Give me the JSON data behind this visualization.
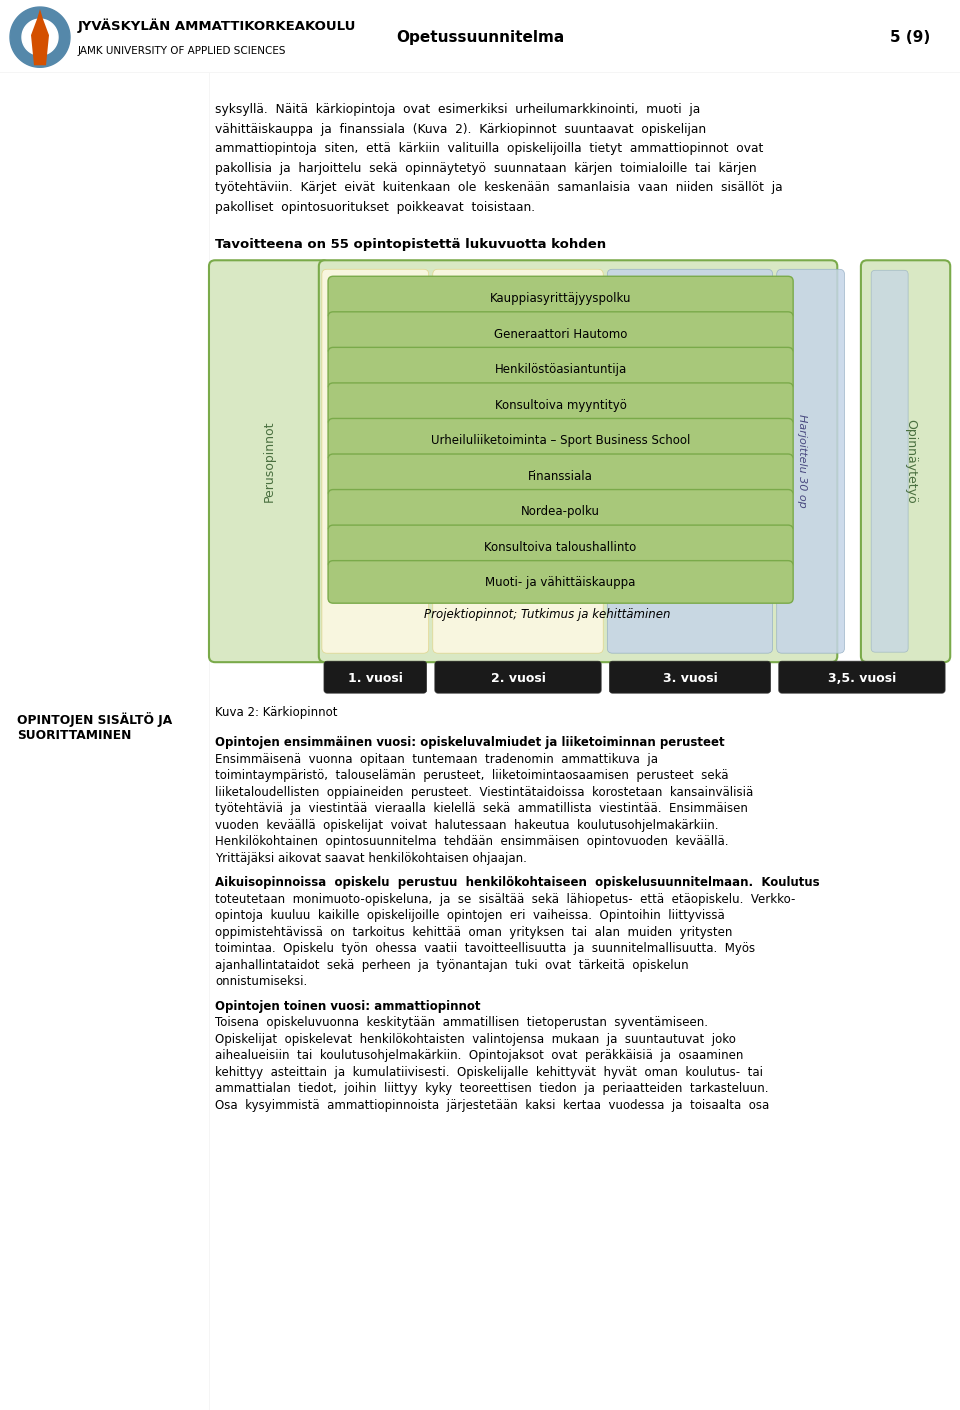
{
  "page_title": "Opetussuunnitelma",
  "page_number": "5 (9)",
  "header_text1": "JYVÄSKYLÄN AMMATTIKORKEAKOULU",
  "header_text2": "JAMK UNIVERSITY OF APPLIED SCIENCES",
  "intro_text": "syksyllä.  Näitä  kärkiopintoja  ovat  esimerkiksi  urheilumarkkinointi,  muoti  ja\nvähittäiskauppa  ja  finanssiala  (Kuva  2).  Kärkiopinnot  suuntaavat  opiskelijan\nammattiopintoja  siten,  että  kärkiin  valituilla  opiskelijoilla  tietyt  ammattiopinnot  ovat\npakollisia  ja  harjoittelu  sekä  opinnäytetyö  suunnataan  kärjen  toimialoille  tai  kärjen\ntyötehtäviin.  Kärjet  eivät  kuitenkaan  ole  keskenään  samanlaisia  vaan  niiden  sisällöt  ja\npakolliset  opintosuoritukset  poikkeavat  toisistaan.",
  "diagram_title": "Tavoitteena on 55 opintopistettä lukuvuotta kohden",
  "tracks": [
    "Kauppiasyrittäjyyspolku",
    "Generaattori Hautomo",
    "Henkilöstöasiantuntija",
    "Konsultoiva myyntityö",
    "Urheiluliiketoiminta – Sport Business School",
    "Finanssiala",
    "Nordea-polku",
    "Konsultoiva taloushallinto",
    "Muoti- ja vähittäiskauppa"
  ],
  "left_label": "Perusopinnot",
  "middle_label": "Harjoittelu 30 op",
  "right_label": "Opinnäytetyö",
  "project_label": "Projektiopinnot; Tutkimus ja kehittäminen",
  "year_labels": [
    "1. vuosi",
    "2. vuosi",
    "3. vuosi",
    "3,5. vuosi"
  ],
  "caption": "Kuva 2: Kärkiopinnot",
  "section_title": "OPINTOJEN SISÄLTÖ JA\nSUORITTAMINEN",
  "body_bold_lines": [
    0,
    9,
    17
  ],
  "body_text_lines": [
    "Opintojen ensimmäinen vuosi: opiskeluvalmiudet ja liiketoiminnan perusteet",
    "Ensimmäisenä  vuonna  opitaan  tuntemaan  tradenomin  ammattikuva  ja",
    "toimintaympäristö,  talouselämän  perusteet,  liiketoimintaosaamisen  perusteet  sekä",
    "liiketaloudellisten  oppiaineiden  perusteet.  Viestintätaidoissa  korostetaan  kansainvälisiä",
    "työtehtäviä  ja  viestintää  vieraalla  kielellä  sekä  ammatillista  viestintää.  Ensimmäisen",
    "vuoden  keväällä  opiskelijat  voivat  halutessaan  hakeutua  koulutusohjelmakärkiin.",
    "Henkilökohtainen  opintosuunnitelma  tehdään  ensimmäisen  opintovuoden  keväällä.",
    "Yrittäjäksi aikovat saavat henkilökohtaisen ohjaajan.",
    "",
    "Aikuisopinnoissa  opiskelu  perustuu  henkilökohtaiseen  opiskelusuunnitelmaan.  Koulutus",
    "toteutetaan  monimuoto-opiskeluna,  ja  se  sisältää  sekä  lähiopetus-  että  etäopiskelu.  Verkko-",
    "opintoja  kuuluu  kaikille  opiskelijoille  opintojen  eri  vaiheissa.  Opintoihin  liittyvissä",
    "oppimistehtävissä  on  tarkoitus  kehittää  oman  yrityksen  tai  alan  muiden  yritysten",
    "toimintaa.  Opiskelu  työn  ohessa  vaatii  tavoitteellisuutta  ja  suunnitelmallisuutta.  Myös",
    "ajanhallintataidot  sekä  perheen  ja  työnantajan  tuki  ovat  tärkeitä  opiskelun",
    "onnistumiseksi.",
    "",
    "Opintojen toinen vuosi: ammattiopinnot",
    "Toisena  opiskeluvuonna  keskitytään  ammatillisen  tietoperustan  syventämiseen.",
    "Opiskelijat  opiskelevat  henkilökohtaisten  valintojensa  mukaan  ja  suuntautuvat  joko",
    "aihealueisiin  tai  koulutusohjelmakärkiin.  Opintojaksot  ovat  peräkkäisiä  ja  osaaminen",
    "kehittyy  asteittain  ja  kumulatiivisesti.  Opiskelijalle  kehittyvät  hyvät  oman  koulutus-  tai",
    "ammattialan  tiedot,  joihin  liittyy  kyky  teoreettisen  tiedon  ja  periaatteiden  tarkasteluun.",
    "Osa  kysyimmistä  ammattiopinnoista  järjestetään  kaksi  kertaa  vuodessa  ja  toisaalta  osa"
  ],
  "colors": {
    "green_light": "#d9e8c4",
    "green_track": "#a8c87a",
    "green_track_edge": "#7aaa4a",
    "green_outer_edge": "#7aaa4a",
    "yellow_col": "#fef9e4",
    "yellow_col_edge": "#e0d080",
    "blue_col": "#c5d5e8",
    "blue_col_edge": "#8faabf",
    "dark_label": "#333333",
    "perus_label": "#4a7040",
    "harj_label": "#4a4a80",
    "opinn_label": "#4a7040"
  }
}
